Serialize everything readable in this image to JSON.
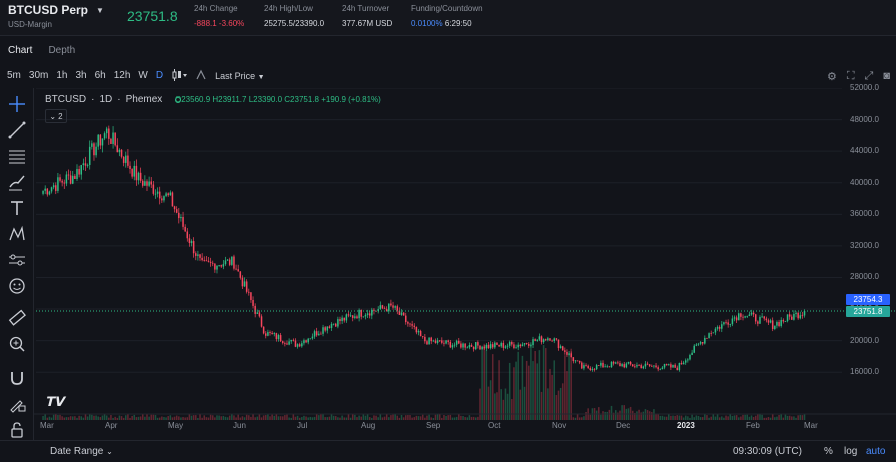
{
  "header": {
    "symbol": "BTCUSD Perp",
    "margin_type": "USD-Margin",
    "last_price": "23751.8",
    "change_label": "24h Change",
    "change_value": "-888.1 -3.60%",
    "hilo_label": "24h High/Low",
    "hilo_value": "25275.5/23390.0",
    "turnover_label": "24h Turnover",
    "turnover_value": "377.67M USD",
    "funding_label": "Funding/Countdown",
    "funding_rate": "0.0100%",
    "funding_countdown": "6:29:50"
  },
  "tabs": [
    "Chart",
    "Depth"
  ],
  "toolbar": {
    "timeframes": [
      "5m",
      "30m",
      "1h",
      "3h",
      "6h",
      "12h",
      "W",
      "D"
    ],
    "selected_timeframe": "D",
    "price_source": "Last Price"
  },
  "legend": {
    "symbol": "BTCUSD",
    "interval": "1D",
    "exchange": "Phemex",
    "ohlc": "O23560.9  H23911.7  L23390.0  C23751.8  +190.9 (+0.81%)",
    "collapse_count": "2"
  },
  "y_axis": [
    "52000.0",
    "48000.0",
    "44000.0",
    "40000.0",
    "36000.0",
    "32000.0",
    "28000.0",
    "24000.0",
    "20000.0",
    "16000.0"
  ],
  "price_tags": {
    "mark": "23754.3",
    "last": "23751.8",
    "mark_color": "#2962ff",
    "last_color": "#26a69a"
  },
  "x_axis": [
    "Mar",
    "Apr",
    "May",
    "Jun",
    "Jul",
    "Aug",
    "Sep",
    "Oct",
    "Nov",
    "Dec",
    "2023",
    "Feb",
    "Mar"
  ],
  "colors": {
    "up": "#2ebd85",
    "down": "#f6465d",
    "accent": "#4a8cff"
  },
  "footer": {
    "date_range": "Date Range",
    "clock": "09:30:09 (UTC)",
    "percent": "%",
    "log": "log",
    "auto": "auto"
  },
  "chart_data": {
    "type": "candlestick",
    "interval": "1D",
    "ylim": [
      14000,
      52000
    ],
    "x_labels": [
      "Mar",
      "Apr",
      "May",
      "Jun",
      "Jul",
      "Aug",
      "Sep",
      "Oct",
      "Nov",
      "Dec",
      "2023",
      "Feb",
      "Mar"
    ],
    "approx_close_path": [
      {
        "month": "Mar-start",
        "close": 39000
      },
      {
        "month": "Mar-mid",
        "close": 41000
      },
      {
        "month": "Apr-start",
        "close": 46500
      },
      {
        "month": "Apr-mid",
        "close": 40500
      },
      {
        "month": "May-start",
        "close": 38000
      },
      {
        "month": "May-mid",
        "close": 29500
      },
      {
        "month": "Jun-start",
        "close": 30000
      },
      {
        "month": "Jun-mid",
        "close": 21000
      },
      {
        "month": "Jul-start",
        "close": 19500
      },
      {
        "month": "Jul-mid",
        "close": 22000
      },
      {
        "month": "Aug-start",
        "close": 23500
      },
      {
        "month": "Aug-mid",
        "close": 24300
      },
      {
        "month": "Sep-start",
        "close": 20000
      },
      {
        "month": "Sep-mid",
        "close": 19500
      },
      {
        "month": "Oct-start",
        "close": 19300
      },
      {
        "month": "Oct-mid",
        "close": 19500
      },
      {
        "month": "Nov-start",
        "close": 20500
      },
      {
        "month": "Nov-mid",
        "close": 16500
      },
      {
        "month": "Dec-start",
        "close": 17000
      },
      {
        "month": "Dec-mid",
        "close": 16800
      },
      {
        "month": "2023-start",
        "close": 16600
      },
      {
        "month": "Jan-mid",
        "close": 21000
      },
      {
        "month": "Feb-start",
        "close": 23500
      },
      {
        "month": "Feb-mid",
        "close": 22000
      },
      {
        "month": "Feb-end",
        "close": 23751.8
      }
    ],
    "last_close": 23751.8
  }
}
